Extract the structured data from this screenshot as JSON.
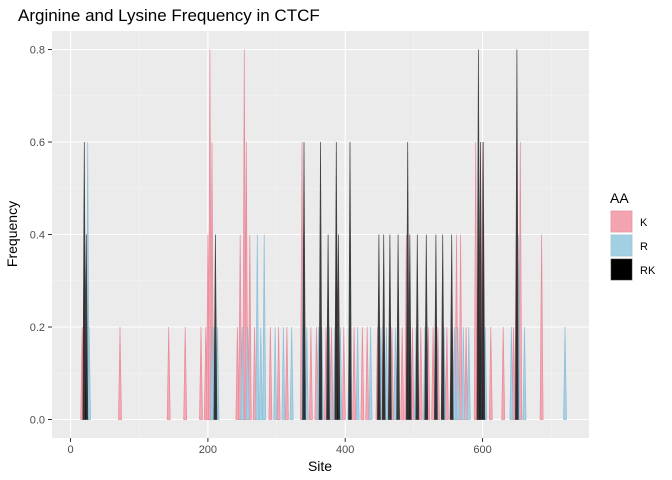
{
  "chart_data": {
    "type": "area",
    "title": "Arginine and Lysine Frequency in CTCF",
    "xlabel": "Site",
    "ylabel": "Frequency",
    "xlim": [
      -27,
      755
    ],
    "ylim": [
      -0.04,
      0.84
    ],
    "x_ticks": [
      0,
      200,
      400,
      600
    ],
    "x_tick_labels": [
      "0",
      "200",
      "400",
      "600"
    ],
    "y_ticks": [
      0,
      0.2,
      0.4,
      0.6,
      0.8
    ],
    "y_tick_labels": [
      "0.0",
      "0.2",
      "0.4",
      "0.6",
      "0.8"
    ],
    "grid": true,
    "legend": {
      "title": "AA",
      "position": "right"
    },
    "series": [
      {
        "name": "K",
        "color": "#f4a3b0",
        "stroke": "#e88a9b",
        "points": [
          [
            17,
            0.2
          ],
          [
            20,
            0.4
          ],
          [
            72,
            0.2
          ],
          [
            143,
            0.2
          ],
          [
            167,
            0.2
          ],
          [
            190,
            0.2
          ],
          [
            197,
            0.2
          ],
          [
            200,
            0.4
          ],
          [
            203,
            0.8
          ],
          [
            206,
            0.6
          ],
          [
            243,
            0.2
          ],
          [
            247,
            0.4
          ],
          [
            253,
            0.8
          ],
          [
            256,
            0.6
          ],
          [
            261,
            0.4
          ],
          [
            268,
            0.2
          ],
          [
            291,
            0.2
          ],
          [
            303,
            0.2
          ],
          [
            315,
            0.2
          ],
          [
            337,
            0.6
          ],
          [
            350,
            0.2
          ],
          [
            358,
            0.2
          ],
          [
            372,
            0.2
          ],
          [
            380,
            0.2
          ],
          [
            387,
            0.4
          ],
          [
            398,
            0.2
          ],
          [
            413,
            0.2
          ],
          [
            425,
            0.2
          ],
          [
            432,
            0.2
          ],
          [
            447,
            0.2
          ],
          [
            455,
            0.2
          ],
          [
            468,
            0.2
          ],
          [
            483,
            0.2
          ],
          [
            489,
            0.4
          ],
          [
            498,
            0.2
          ],
          [
            510,
            0.2
          ],
          [
            521,
            0.2
          ],
          [
            528,
            0.2
          ],
          [
            535,
            0.2
          ],
          [
            548,
            0.2
          ],
          [
            556,
            0.2
          ],
          [
            562,
            0.4
          ],
          [
            568,
            0.4
          ],
          [
            576,
            0.2
          ],
          [
            590,
            0.6
          ],
          [
            595,
            0.4
          ],
          [
            600,
            0.6
          ],
          [
            612,
            0.2
          ],
          [
            630,
            0.2
          ],
          [
            645,
            0.2
          ],
          [
            649,
            0.4
          ],
          [
            655,
            0.6
          ],
          [
            686,
            0.4
          ]
        ]
      },
      {
        "name": "R",
        "color": "#a3cfe3",
        "stroke": "#8cbfd8",
        "points": [
          [
            25,
            0.6
          ],
          [
            27,
            0.2
          ],
          [
            206,
            0.2
          ],
          [
            209,
            0.2
          ],
          [
            214,
            0.2
          ],
          [
            250,
            0.2
          ],
          [
            258,
            0.2
          ],
          [
            272,
            0.4
          ],
          [
            277,
            0.2
          ],
          [
            282,
            0.4
          ],
          [
            298,
            0.2
          ],
          [
            310,
            0.2
          ],
          [
            322,
            0.2
          ],
          [
            339,
            0.4
          ],
          [
            344,
            0.2
          ],
          [
            361,
            0.2
          ],
          [
            366,
            0.2
          ],
          [
            377,
            0.2
          ],
          [
            385,
            0.2
          ],
          [
            393,
            0.2
          ],
          [
            406,
            0.2
          ],
          [
            418,
            0.2
          ],
          [
            437,
            0.2
          ],
          [
            452,
            0.2
          ],
          [
            460,
            0.2
          ],
          [
            473,
            0.2
          ],
          [
            493,
            0.2
          ],
          [
            503,
            0.2
          ],
          [
            516,
            0.2
          ],
          [
            532,
            0.2
          ],
          [
            544,
            0.2
          ],
          [
            559,
            0.2
          ],
          [
            564,
            0.2
          ],
          [
            572,
            0.2
          ],
          [
            580,
            0.2
          ],
          [
            598,
            0.2
          ],
          [
            604,
            0.2
          ],
          [
            642,
            0.2
          ],
          [
            652,
            0.4
          ],
          [
            661,
            0.2
          ],
          [
            720,
            0.2
          ]
        ]
      },
      {
        "name": "RK",
        "color": "#000000",
        "stroke": "#404040",
        "points": [
          [
            20,
            0.6
          ],
          [
            23,
            0.4
          ],
          [
            211,
            0.4
          ],
          [
            340,
            0.6
          ],
          [
            364,
            0.6
          ],
          [
            375,
            0.4
          ],
          [
            387,
            0.6
          ],
          [
            390,
            0.4
          ],
          [
            407,
            0.6
          ],
          [
            449,
            0.4
          ],
          [
            456,
            0.4
          ],
          [
            465,
            0.4
          ],
          [
            477,
            0.4
          ],
          [
            491,
            0.6
          ],
          [
            494,
            0.4
          ],
          [
            505,
            0.4
          ],
          [
            518,
            0.4
          ],
          [
            532,
            0.4
          ],
          [
            542,
            0.4
          ],
          [
            555,
            0.4
          ],
          [
            594,
            0.8
          ],
          [
            597,
            0.6
          ],
          [
            601,
            0.6
          ],
          [
            650,
            0.8
          ]
        ]
      }
    ]
  }
}
